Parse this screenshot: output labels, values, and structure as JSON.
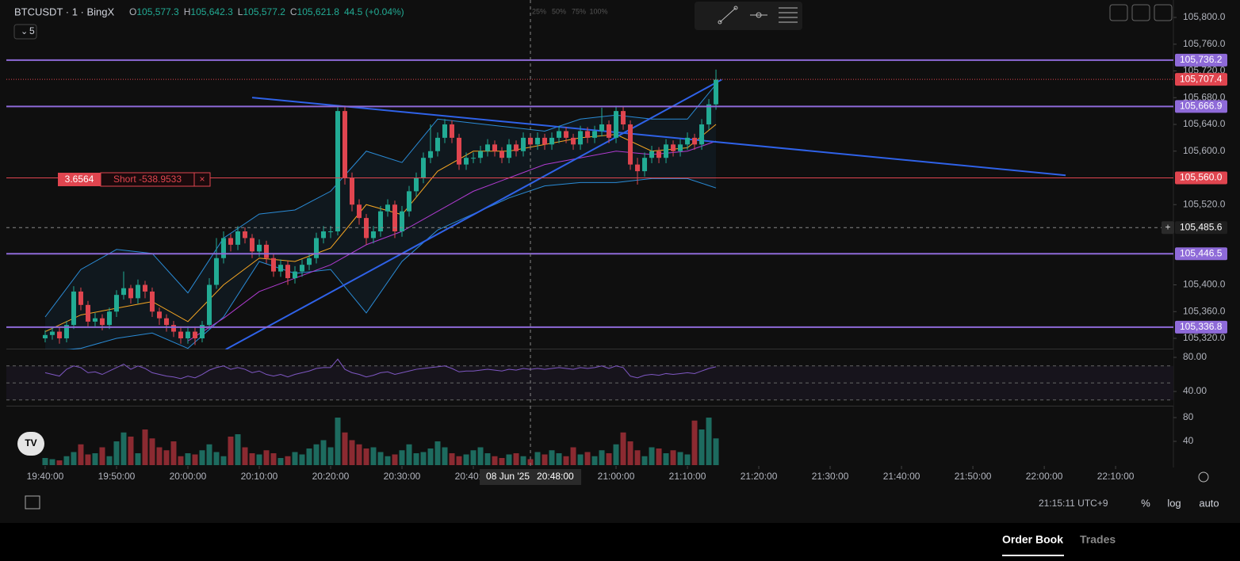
{
  "header": {
    "symbol": "BTCUSDT · 1 · BingX",
    "ohlc": [
      {
        "key": "O",
        "value": "105,577.3"
      },
      {
        "key": "H",
        "value": "105,642.3"
      },
      {
        "key": "L",
        "value": "105,577.2"
      },
      {
        "key": "C",
        "value": "105,621.8"
      }
    ],
    "change": "44.5 (+0.04%)",
    "interval_badge": "5",
    "depth_labels": [
      "25%",
      "50%",
      "75%",
      "100%"
    ]
  },
  "position": {
    "qty": "3.6564",
    "label": "Short -538.9533"
  },
  "chart_data": {
    "type": "candlestick",
    "up_color": "#22ab94",
    "down_color": "#e0454f",
    "xlim": [
      -5.44,
      158.1
    ],
    "ylim": [
      105303.4,
      105826.1
    ],
    "xticks": [
      {
        "value": 0,
        "label": "19:40:00"
      },
      {
        "value": 10,
        "label": "19:50:00"
      },
      {
        "value": 20,
        "label": "20:00:00"
      },
      {
        "value": 30,
        "label": "20:10:00"
      },
      {
        "value": 40,
        "label": "20:20:00"
      },
      {
        "value": 50,
        "label": "20:30:00"
      },
      {
        "value": 60,
        "label": "20:40:00"
      },
      {
        "value": 80,
        "label": "21:00:00"
      },
      {
        "value": 90,
        "label": "21:10:00"
      },
      {
        "value": 100,
        "label": "21:20:00"
      },
      {
        "value": 110,
        "label": "21:30:00"
      },
      {
        "value": 120,
        "label": "21:40:00"
      },
      {
        "value": 130,
        "label": "21:50:00"
      },
      {
        "value": 140,
        "label": "22:00:00"
      },
      {
        "value": 150,
        "label": "22:10:00"
      }
    ],
    "yticks": [
      {
        "value": 105800,
        "label": "105,800.0"
      },
      {
        "value": 105760,
        "label": "105,760.0"
      },
      {
        "value": 105720,
        "label": "105,720.0"
      },
      {
        "value": 105680,
        "label": "105,680.0"
      },
      {
        "value": 105640,
        "label": "105,640.0"
      },
      {
        "value": 105600,
        "label": "105,600.0"
      },
      {
        "value": 105520,
        "label": "105,520.0"
      },
      {
        "value": 105400,
        "label": "105,400.0"
      },
      {
        "value": 105360,
        "label": "105,360.0"
      },
      {
        "value": 105320,
        "label": "105,320.0"
      }
    ],
    "open": [
      105320,
      105325,
      105330,
      105320,
      105340,
      105390,
      105370,
      105345,
      105350,
      105340,
      105360,
      105385,
      105395,
      105380,
      105400,
      105390,
      105360,
      105350,
      105340,
      105330,
      105320,
      105330,
      105320,
      105340,
      105400,
      105440,
      105470,
      105460,
      105480,
      105470,
      105450,
      105460,
      105440,
      105420,
      105430,
      105410,
      105420,
      105430,
      105440,
      105470,
      105480,
      105480,
      105660,
      105560,
      105520,
      105500,
      105470,
      105480,
      105510,
      105520,
      105480,
      105510,
      105540,
      105560,
      105590,
      105600,
      105620,
      105640,
      105620,
      105580,
      105590,
      105590,
      105600,
      105610,
      105600,
      105590,
      105610,
      105600,
      105620,
      105610,
      105620,
      105610,
      105620,
      105630,
      105620,
      105610,
      105630,
      105620,
      105630,
      105640,
      105620,
      105660,
      105640,
      105580,
      105570,
      105590,
      105600,
      105590,
      105610,
      105600,
      105610,
      105620,
      105610,
      105640,
      105670
    ],
    "high": [
      105332,
      105336,
      105336,
      105346,
      105398,
      105396,
      105376,
      105358,
      105356,
      105366,
      105392,
      105420,
      105400,
      105408,
      105406,
      105396,
      105366,
      105356,
      105346,
      105338,
      105338,
      105336,
      105346,
      105410,
      105470,
      105480,
      105476,
      105488,
      105486,
      105476,
      105468,
      105466,
      105446,
      105438,
      105436,
      105428,
      105438,
      105448,
      105478,
      105488,
      105488,
      105668,
      105666,
      105568,
      105528,
      105506,
      105488,
      105518,
      105528,
      105526,
      105518,
      105548,
      105568,
      105598,
      105640,
      105628,
      105648,
      105646,
      105626,
      105598,
      105598,
      105608,
      105618,
      105616,
      105606,
      105618,
      105616,
      105628,
      105626,
      105628,
      105626,
      105628,
      105638,
      105636,
      105626,
      105638,
      105636,
      105638,
      105665,
      105646,
      105668,
      105666,
      105646,
      105590,
      105598,
      105608,
      105606,
      105618,
      105616,
      105618,
      105628,
      105626,
      105648,
      105678,
      105722
    ],
    "low": [
      105314,
      105318,
      105312,
      105314,
      105334,
      105362,
      105338,
      105338,
      105332,
      105334,
      105352,
      105378,
      105372,
      105372,
      105380,
      105352,
      105340,
      105330,
      105322,
      105312,
      105312,
      105310,
      105314,
      105334,
      105394,
      105432,
      105450,
      105452,
      105462,
      105440,
      105442,
      105432,
      105412,
      105412,
      105400,
      105402,
      105412,
      105422,
      105432,
      105462,
      105470,
      105474,
      105550,
      105510,
      105490,
      105460,
      105462,
      105472,
      105502,
      105470,
      105472,
      105502,
      105532,
      105552,
      105582,
      105592,
      105612,
      105612,
      105572,
      105572,
      105582,
      105582,
      105592,
      105592,
      105582,
      105582,
      105592,
      105592,
      105602,
      105602,
      105602,
      105602,
      105612,
      105612,
      105602,
      105602,
      105612,
      105612,
      105622,
      105612,
      105612,
      105632,
      105572,
      105550,
      105562,
      105582,
      105582,
      105582,
      105592,
      105592,
      105602,
      105602,
      105602,
      105632,
      105662
    ],
    "close": [
      105325,
      105330,
      105320,
      105340,
      105390,
      105370,
      105345,
      105350,
      105340,
      105360,
      105385,
      105395,
      105380,
      105400,
      105390,
      105360,
      105350,
      105340,
      105330,
      105320,
      105330,
      105320,
      105340,
      105400,
      105440,
      105470,
      105460,
      105480,
      105470,
      105450,
      105460,
      105440,
      105420,
      105430,
      105410,
      105420,
      105430,
      105440,
      105470,
      105480,
      105480,
      105660,
      105560,
      105520,
      105500,
      105470,
      105480,
      105510,
      105520,
      105480,
      105510,
      105540,
      105560,
      105590,
      105600,
      105620,
      105640,
      105620,
      105580,
      105590,
      105590,
      105600,
      105610,
      105600,
      105590,
      105610,
      105600,
      105620,
      105610,
      105620,
      105610,
      105620,
      105630,
      105620,
      105610,
      105630,
      105620,
      105630,
      105640,
      105620,
      105660,
      105640,
      105580,
      105570,
      105590,
      105600,
      105590,
      105610,
      105600,
      105610,
      105620,
      105610,
      105640,
      105670,
      105707
    ],
    "overlays": [
      {
        "color": "#2a8bd6",
        "x": [
          0,
          5,
          10,
          15,
          20,
          25,
          30,
          35,
          40,
          45,
          50,
          55,
          60,
          65,
          70,
          75,
          80,
          85,
          90,
          94
        ],
        "values": [
          105352,
          105423,
          105453,
          105447,
          105388,
          105470,
          105506,
          105512,
          105540,
          105600,
          105583,
          105648,
          105642,
          105636,
          105630,
          105648,
          105654,
          105648,
          105648,
          105700
        ]
      },
      {
        "color": "#2a8bd6",
        "x": [
          0,
          5,
          10,
          15,
          20,
          25,
          30,
          35,
          40,
          45,
          50,
          55,
          60,
          65,
          70,
          75,
          80,
          85,
          90,
          94
        ],
        "values": [
          105300,
          105305,
          105320,
          105328,
          105305,
          105352,
          105435,
          105417,
          105423,
          105358,
          105435,
          105482,
          105506,
          105530,
          105548,
          105553,
          105553,
          105559,
          105559,
          105545
        ]
      },
      {
        "color": "#f5a623",
        "x": [
          0,
          5,
          10,
          15,
          20,
          25,
          30,
          35,
          40,
          45,
          50,
          55,
          60,
          65,
          70,
          75,
          80,
          85,
          90,
          94
        ],
        "values": [
          105330,
          105355,
          105365,
          105375,
          105345,
          105400,
          105440,
          105435,
          105455,
          105520,
          105505,
          105570,
          105600,
          105600,
          105610,
          105620,
          105625,
          105600,
          105605,
          105640
        ]
      },
      {
        "color": "#b03bd1",
        "x": [
          20,
          25,
          30,
          35,
          40,
          45,
          50,
          55,
          60,
          65,
          70,
          75,
          80,
          85,
          90,
          94
        ],
        "values": [
          105316,
          105350,
          105390,
          105410,
          105430,
          105460,
          105480,
          105510,
          105540,
          105560,
          105580,
          105590,
          105600,
          105595,
          105600,
          105615
        ]
      }
    ],
    "trendlines": [
      {
        "color": "#2f62e8",
        "x": [
          29,
          143
        ],
        "values": [
          105680.2,
          105563.9
        ]
      },
      {
        "color": "#2f62e8",
        "x": [
          25.3,
          94.8
        ],
        "values": [
          105303.4,
          105707
        ]
      }
    ],
    "levels": [
      {
        "value": 105736.2,
        "label": "105,736.2"
      },
      {
        "value": 105666.9,
        "label": "105,666.9"
      },
      {
        "value": 105446.5,
        "label": "105,446.5"
      },
      {
        "value": 105336.8,
        "label": "105,336.8"
      }
    ],
    "level_color": "#8e6ad8",
    "order_line": {
      "value": 105560,
      "label": "105,560.0"
    },
    "last_price": {
      "value": 105707.4,
      "label": "105,707.4"
    },
    "crosshair": {
      "x": 68,
      "date": "08 Jun '25",
      "time": "20:48:00",
      "price": {
        "value": 105485.6,
        "label": "105,485.6"
      }
    },
    "rsi": {
      "color": "#7e57c2",
      "ylim": [
        23.3,
        89.3
      ],
      "yticks": [
        {
          "value": 80,
          "label": "80.00"
        },
        {
          "value": 40,
          "label": "40.00"
        }
      ],
      "bands": [
        70,
        50,
        30
      ],
      "values": [
        62,
        60,
        58,
        66,
        70,
        68,
        62,
        63,
        60,
        64,
        68,
        72,
        66,
        70,
        67,
        62,
        60,
        58,
        57,
        55,
        58,
        56,
        60,
        65,
        68,
        70,
        66,
        68,
        66,
        62,
        64,
        60,
        58,
        60,
        57,
        60,
        62,
        64,
        67,
        68,
        68,
        78,
        66,
        62,
        60,
        57,
        59,
        62,
        63,
        60,
        62,
        64,
        66,
        67,
        68,
        69,
        70,
        67,
        63,
        64,
        64,
        65,
        66,
        65,
        64,
        66,
        65,
        67,
        66,
        67,
        66,
        67,
        68,
        67,
        66,
        68,
        67,
        68,
        70,
        67,
        70,
        68,
        58,
        56,
        59,
        60,
        59,
        61,
        60,
        61,
        62,
        61,
        64,
        67,
        69
      ]
    },
    "volume": {
      "up_color": "#1d6b5f",
      "down_color": "#8b2a31",
      "ylim": [
        0,
        98.7
      ],
      "yticks": [
        80,
        40
      ],
      "values": [
        12,
        10,
        8,
        15,
        22,
        35,
        18,
        20,
        30,
        15,
        40,
        55,
        48,
        20,
        60,
        45,
        30,
        25,
        40,
        15,
        20,
        18,
        25,
        35,
        22,
        15,
        48,
        52,
        30,
        20,
        18,
        25,
        20,
        12,
        15,
        22,
        18,
        28,
        35,
        42,
        30,
        80,
        55,
        42,
        35,
        28,
        30,
        22,
        15,
        18,
        25,
        35,
        20,
        22,
        28,
        40,
        30,
        20,
        15,
        18,
        25,
        30,
        20,
        15,
        12,
        18,
        20,
        15,
        10,
        22,
        18,
        25,
        20,
        15,
        30,
        18,
        22,
        15,
        25,
        20,
        35,
        55,
        40,
        25,
        15,
        30,
        28,
        20,
        25,
        22,
        18,
        75,
        60,
        80,
        45
      ]
    }
  },
  "footer": {
    "clock": "21:15:11 UTC+9",
    "buttons": [
      "%",
      "log",
      "auto"
    ]
  },
  "tabs": [
    "Order Book",
    "Trades"
  ]
}
